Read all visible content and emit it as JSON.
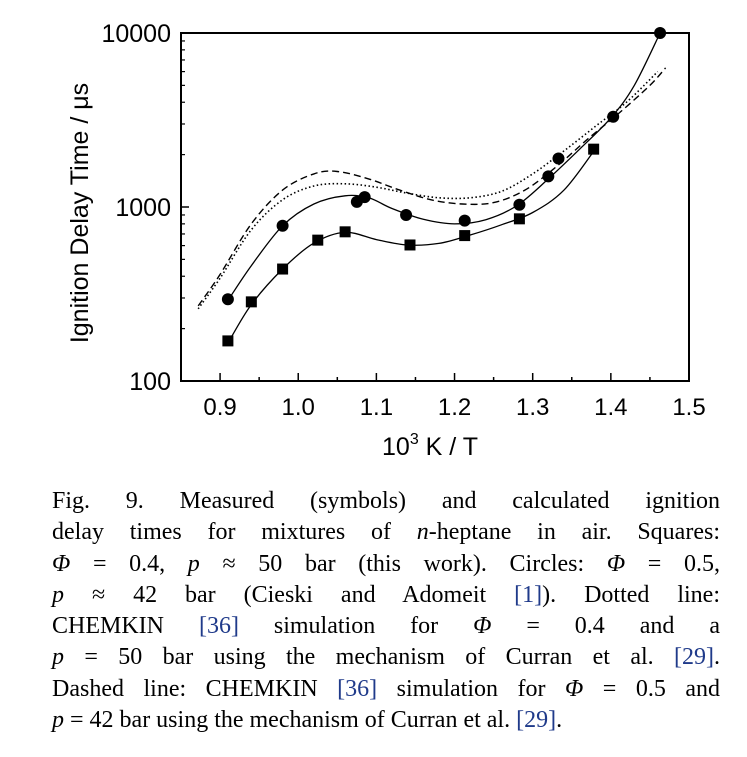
{
  "chart_data": {
    "type": "scatter",
    "title": "",
    "xlabel_base": "10",
    "xlabel_sup": "3",
    "xlabel_rest": " K / T",
    "ylabel": "Ignition Delay Time / μs",
    "xlim": [
      0.85,
      1.5
    ],
    "ylim": [
      100,
      10000
    ],
    "yscale": "log",
    "xticks": [
      "0.9",
      "1.0",
      "1.1",
      "1.2",
      "1.3",
      "1.4",
      "1.5"
    ],
    "yticks": [
      "100",
      "1000",
      "10000"
    ],
    "grid": false,
    "series": [
      {
        "marker": "square",
        "points": [
          [
            0.91,
            170
          ],
          [
            0.94,
            285
          ],
          [
            0.98,
            440
          ],
          [
            1.025,
            645
          ],
          [
            1.06,
            720
          ],
          [
            1.143,
            605
          ],
          [
            1.213,
            685
          ],
          [
            1.283,
            855
          ],
          [
            1.378,
            2150
          ]
        ]
      },
      {
        "marker": "circle",
        "points": [
          [
            0.91,
            295
          ],
          [
            0.98,
            780
          ],
          [
            1.075,
            1070
          ],
          [
            1.085,
            1140
          ],
          [
            1.138,
            900
          ],
          [
            1.213,
            835
          ],
          [
            1.283,
            1030
          ],
          [
            1.32,
            1500
          ],
          [
            1.333,
            1900
          ],
          [
            1.403,
            3300
          ],
          [
            1.463,
            10000
          ]
        ]
      }
    ],
    "fit_lines": [
      {
        "style": "solid",
        "points": [
          [
            0.91,
            165
          ],
          [
            0.94,
            275
          ],
          [
            0.98,
            440
          ],
          [
            1.02,
            620
          ],
          [
            1.06,
            715
          ],
          [
            1.1,
            650
          ],
          [
            1.14,
            605
          ],
          [
            1.18,
            618
          ],
          [
            1.22,
            690
          ],
          [
            1.26,
            790
          ],
          [
            1.3,
            930
          ],
          [
            1.34,
            1250
          ],
          [
            1.38,
            2150
          ]
        ]
      },
      {
        "style": "solid",
        "points": [
          [
            0.91,
            290
          ],
          [
            0.94,
            460
          ],
          [
            0.98,
            780
          ],
          [
            1.02,
            1040
          ],
          [
            1.06,
            1160
          ],
          [
            1.09,
            1130
          ],
          [
            1.12,
            980
          ],
          [
            1.16,
            850
          ],
          [
            1.2,
            800
          ],
          [
            1.24,
            845
          ],
          [
            1.28,
            1020
          ],
          [
            1.32,
            1450
          ],
          [
            1.36,
            2150
          ],
          [
            1.4,
            3250
          ],
          [
            1.43,
            5000
          ],
          [
            1.463,
            10000
          ]
        ]
      },
      {
        "style": "dotted",
        "points": [
          [
            0.872,
            260
          ],
          [
            0.9,
            390
          ],
          [
            0.94,
            740
          ],
          [
            0.98,
            1100
          ],
          [
            1.02,
            1320
          ],
          [
            1.06,
            1360
          ],
          [
            1.1,
            1300
          ],
          [
            1.14,
            1200
          ],
          [
            1.18,
            1130
          ],
          [
            1.22,
            1130
          ],
          [
            1.26,
            1230
          ],
          [
            1.3,
            1550
          ],
          [
            1.34,
            2100
          ],
          [
            1.38,
            2900
          ],
          [
            1.42,
            4000
          ],
          [
            1.46,
            6000
          ]
        ]
      },
      {
        "style": "dashed",
        "points": [
          [
            0.872,
            270
          ],
          [
            0.9,
            410
          ],
          [
            0.94,
            800
          ],
          [
            0.98,
            1250
          ],
          [
            1.02,
            1550
          ],
          [
            1.05,
            1600
          ],
          [
            1.09,
            1450
          ],
          [
            1.13,
            1250
          ],
          [
            1.17,
            1100
          ],
          [
            1.21,
            1040
          ],
          [
            1.25,
            1060
          ],
          [
            1.29,
            1250
          ],
          [
            1.33,
            1700
          ],
          [
            1.37,
            2450
          ],
          [
            1.41,
            3450
          ],
          [
            1.45,
            5000
          ],
          [
            1.47,
            6300
          ]
        ]
      }
    ]
  },
  "caption": {
    "lines": [
      [
        "Fig. 9. Measured (symbols) and calculated ignition"
      ],
      [
        "delay times for mixtures of ",
        {
          "i": "n"
        },
        "-heptane in air. Squares:"
      ],
      [
        {
          "i": "Φ"
        },
        " = 0.4, ",
        {
          "i": "p"
        },
        " ≈ 50 bar (this work). Circles: ",
        {
          "i": "Φ"
        },
        " = 0.5,"
      ],
      [
        {
          "i": "p"
        },
        " ≈ 42 bar (Cieski and Adomeit ",
        {
          "r": "[1]"
        },
        "). Dotted line:"
      ],
      [
        "CHEMKIN ",
        {
          "r": "[36]"
        },
        " simulation for ",
        {
          "i": "Φ"
        },
        " = 0.4 and a"
      ],
      [
        {
          "i": "p"
        },
        " = 50 bar using the mechanism of Curran et al. ",
        {
          "r": "[29]"
        },
        "."
      ],
      [
        "Dashed line: CHEMKIN ",
        {
          "r": "[36]"
        },
        " simulation for ",
        {
          "i": "Φ"
        },
        " = 0.5 and"
      ],
      [
        {
          "i": "p"
        },
        " = 42 bar using the mechanism of Curran et al. ",
        {
          "r": "[29]"
        },
        "."
      ]
    ]
  }
}
